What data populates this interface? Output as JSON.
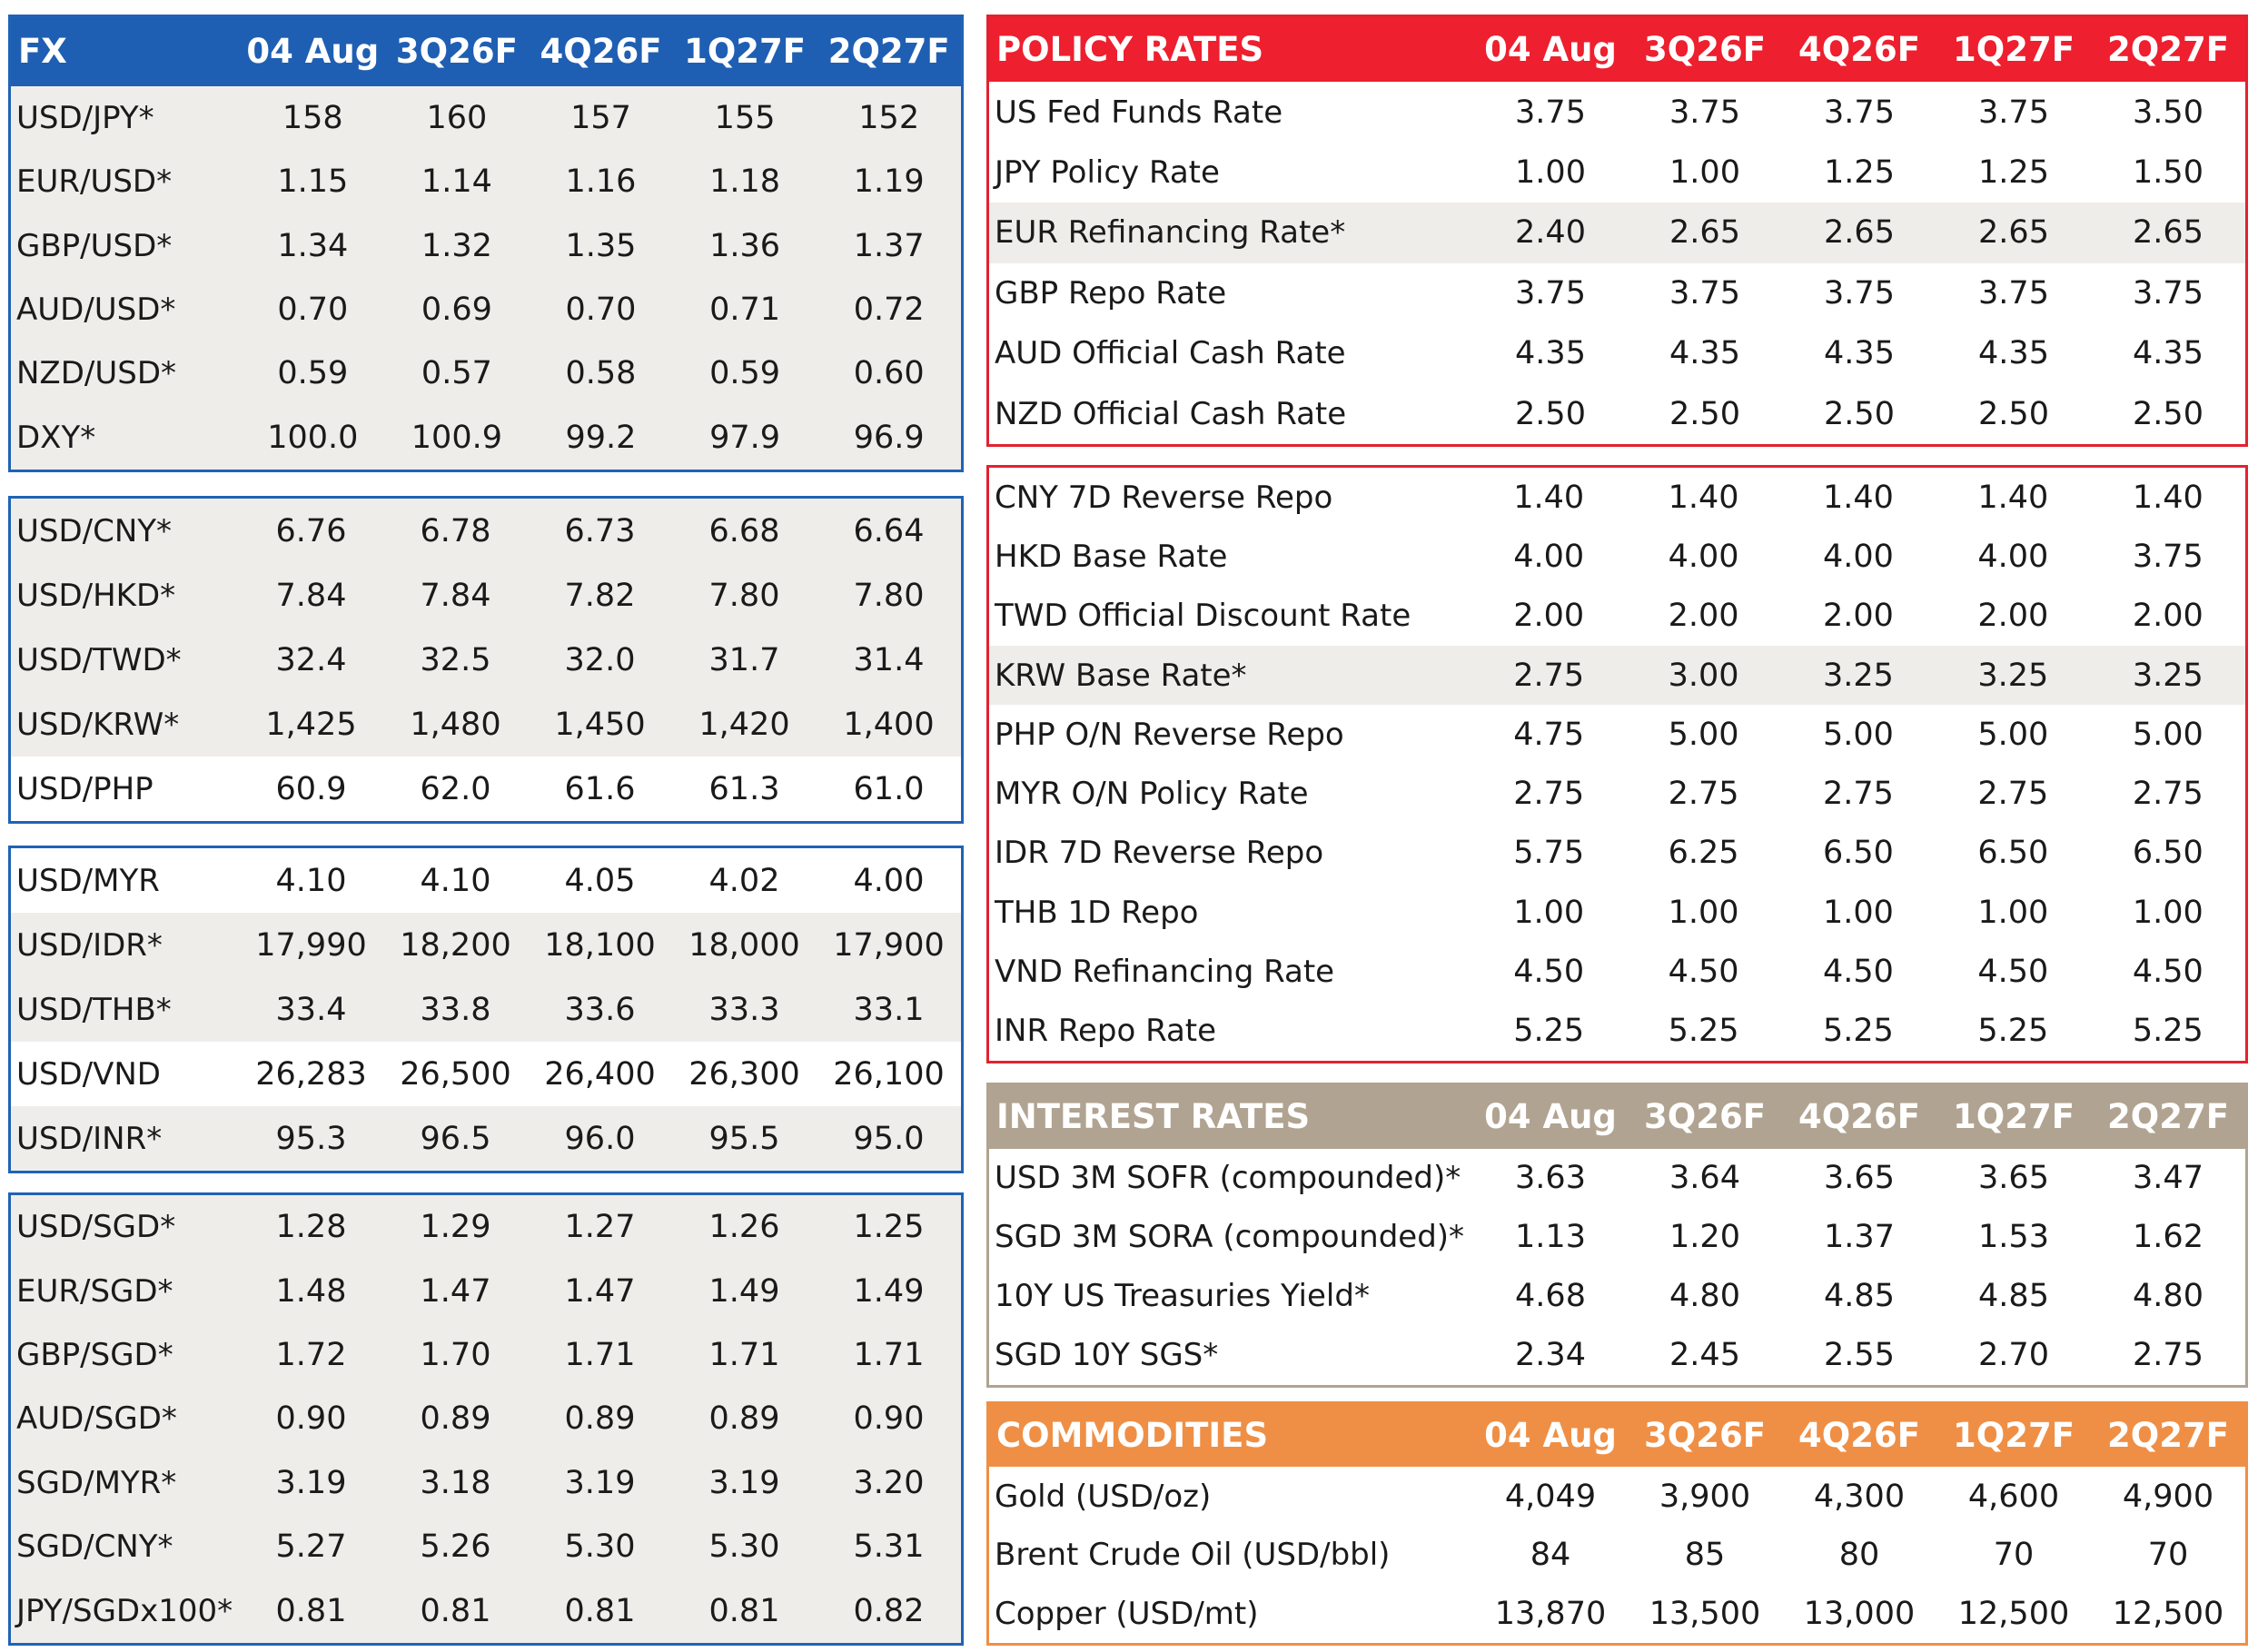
{
  "fx": {
    "title": "FX",
    "columns": [
      "04 Aug",
      "3Q26F",
      "4Q26F",
      "1Q27F",
      "2Q27F"
    ],
    "groups": [
      [
        {
          "label": "USD/JPY*",
          "values": [
            "158",
            "160",
            "157",
            "155",
            "152"
          ]
        },
        {
          "label": "EUR/USD*",
          "values": [
            "1.15",
            "1.14",
            "1.16",
            "1.18",
            "1.19"
          ]
        },
        {
          "label": "GBP/USD*",
          "values": [
            "1.34",
            "1.32",
            "1.35",
            "1.36",
            "1.37"
          ]
        },
        {
          "label": "AUD/USD*",
          "values": [
            "0.70",
            "0.69",
            "0.70",
            "0.71",
            "0.72"
          ]
        },
        {
          "label": "NZD/USD*",
          "values": [
            "0.59",
            "0.57",
            "0.58",
            "0.59",
            "0.60"
          ]
        },
        {
          "label": "DXY*",
          "values": [
            "100.0",
            "100.9",
            "99.2",
            "97.9",
            "96.9"
          ]
        }
      ],
      [
        {
          "label": "USD/CNY*",
          "values": [
            "6.76",
            "6.78",
            "6.73",
            "6.68",
            "6.64"
          ]
        },
        {
          "label": "USD/HKD*",
          "values": [
            "7.84",
            "7.84",
            "7.82",
            "7.80",
            "7.80"
          ]
        },
        {
          "label": "USD/TWD*",
          "values": [
            "32.4",
            "32.5",
            "32.0",
            "31.7",
            "31.4"
          ]
        },
        {
          "label": "USD/KRW*",
          "values": [
            "1,425",
            "1,480",
            "1,450",
            "1,420",
            "1,400"
          ]
        },
        {
          "label": "USD/PHP",
          "values": [
            "60.9",
            "62.0",
            "61.6",
            "61.3",
            "61.0"
          ]
        }
      ],
      [
        {
          "label": "USD/MYR",
          "values": [
            "4.10",
            "4.10",
            "4.05",
            "4.02",
            "4.00"
          ]
        },
        {
          "label": "USD/IDR*",
          "values": [
            "17,990",
            "18,200",
            "18,100",
            "18,000",
            "17,900"
          ]
        },
        {
          "label": "USD/THB*",
          "values": [
            "33.4",
            "33.8",
            "33.6",
            "33.3",
            "33.1"
          ]
        },
        {
          "label": "USD/VND",
          "values": [
            "26,283",
            "26,500",
            "26,400",
            "26,300",
            "26,100"
          ]
        },
        {
          "label": "USD/INR*",
          "values": [
            "95.3",
            "96.5",
            "96.0",
            "95.5",
            "95.0"
          ]
        }
      ],
      [
        {
          "label": "USD/SGD*",
          "values": [
            "1.28",
            "1.29",
            "1.27",
            "1.26",
            "1.25"
          ]
        },
        {
          "label": "EUR/SGD*",
          "values": [
            "1.48",
            "1.47",
            "1.47",
            "1.49",
            "1.49"
          ]
        },
        {
          "label": "GBP/SGD*",
          "values": [
            "1.72",
            "1.70",
            "1.71",
            "1.71",
            "1.71"
          ]
        },
        {
          "label": "AUD/SGD*",
          "values": [
            "0.90",
            "0.89",
            "0.89",
            "0.89",
            "0.90"
          ]
        },
        {
          "label": "SGD/MYR*",
          "values": [
            "3.19",
            "3.18",
            "3.19",
            "3.19",
            "3.20"
          ]
        },
        {
          "label": "SGD/CNY*",
          "values": [
            "5.27",
            "5.26",
            "5.30",
            "5.30",
            "5.31"
          ]
        },
        {
          "label": "JPY/SGDx100*",
          "values": [
            "0.81",
            "0.81",
            "0.81",
            "0.81",
            "0.82"
          ]
        }
      ]
    ]
  },
  "policy_rates": {
    "title": "POLICY RATES",
    "columns": [
      "04 Aug",
      "3Q26F",
      "4Q26F",
      "1Q27F",
      "2Q27F"
    ],
    "groups": [
      [
        {
          "label": "US Fed Funds Rate",
          "values": [
            "3.75",
            "3.75",
            "3.75",
            "3.75",
            "3.50"
          ]
        },
        {
          "label": "JPY Policy Rate",
          "values": [
            "1.00",
            "1.00",
            "1.25",
            "1.25",
            "1.50"
          ]
        },
        {
          "label": "EUR Refinancing Rate*",
          "values": [
            "2.40",
            "2.65",
            "2.65",
            "2.65",
            "2.65"
          ]
        },
        {
          "label": "GBP Repo Rate",
          "values": [
            "3.75",
            "3.75",
            "3.75",
            "3.75",
            "3.75"
          ]
        },
        {
          "label": "AUD Official Cash Rate",
          "values": [
            "4.35",
            "4.35",
            "4.35",
            "4.35",
            "4.35"
          ]
        },
        {
          "label": "NZD Official Cash Rate",
          "values": [
            "2.50",
            "2.50",
            "2.50",
            "2.50",
            "2.50"
          ]
        }
      ],
      [
        {
          "label": "CNY 7D Reverse Repo",
          "values": [
            "1.40",
            "1.40",
            "1.40",
            "1.40",
            "1.40"
          ]
        },
        {
          "label": "HKD Base Rate",
          "values": [
            "4.00",
            "4.00",
            "4.00",
            "4.00",
            "3.75"
          ]
        },
        {
          "label": "TWD Official Discount Rate",
          "values": [
            "2.00",
            "2.00",
            "2.00",
            "2.00",
            "2.00"
          ]
        },
        {
          "label": "KRW Base Rate*",
          "values": [
            "2.75",
            "3.00",
            "3.25",
            "3.25",
            "3.25"
          ]
        },
        {
          "label": "PHP O/N Reverse Repo",
          "values": [
            "4.75",
            "5.00",
            "5.00",
            "5.00",
            "5.00"
          ]
        },
        {
          "label": "MYR O/N Policy Rate",
          "values": [
            "2.75",
            "2.75",
            "2.75",
            "2.75",
            "2.75"
          ]
        },
        {
          "label": "IDR 7D Reverse Repo",
          "values": [
            "5.75",
            "6.25",
            "6.50",
            "6.50",
            "6.50"
          ]
        },
        {
          "label": "THB 1D Repo",
          "values": [
            "1.00",
            "1.00",
            "1.00",
            "1.00",
            "1.00"
          ]
        },
        {
          "label": "VND Refinancing Rate",
          "values": [
            "4.50",
            "4.50",
            "4.50",
            "4.50",
            "4.50"
          ]
        },
        {
          "label": "INR Repo Rate",
          "values": [
            "5.25",
            "5.25",
            "5.25",
            "5.25",
            "5.25"
          ]
        }
      ]
    ]
  },
  "interest_rates": {
    "title": "INTEREST RATES",
    "columns": [
      "04 Aug",
      "3Q26F",
      "4Q26F",
      "1Q27F",
      "2Q27F"
    ],
    "rows": [
      {
        "label": "USD 3M SOFR (compounded)*",
        "values": [
          "3.63",
          "3.64",
          "3.65",
          "3.65",
          "3.47"
        ]
      },
      {
        "label": "SGD 3M SORA (compounded)*",
        "values": [
          "1.13",
          "1.20",
          "1.37",
          "1.53",
          "1.62"
        ]
      },
      {
        "label": "10Y US Treasuries Yield*",
        "values": [
          "4.68",
          "4.80",
          "4.85",
          "4.85",
          "4.80"
        ]
      },
      {
        "label": "SGD 10Y SGS*",
        "values": [
          "2.34",
          "2.45",
          "2.55",
          "2.70",
          "2.75"
        ]
      }
    ]
  },
  "commodities": {
    "title": "COMMODITIES",
    "columns": [
      "04 Aug",
      "3Q26F",
      "4Q26F",
      "1Q27F",
      "2Q27F"
    ],
    "rows": [
      {
        "label": "Gold (USD/oz)",
        "values": [
          "4,049",
          "3,900",
          "4,300",
          "4,600",
          "4,900"
        ]
      },
      {
        "label": "Brent Crude Oil (USD/bbl)",
        "values": [
          "84",
          "85",
          "80",
          "70",
          "70"
        ]
      },
      {
        "label": "Copper (USD/mt)",
        "values": [
          "13,870",
          "13,500",
          "13,000",
          "12,500",
          "12,500"
        ]
      }
    ]
  },
  "colors": {
    "fx_blue": "#1f5fb3",
    "policy_red": "#ee1f2e",
    "interest_tan": "#b0a391",
    "commodities_orange": "#ef8f45",
    "row_shade": "#efedea"
  }
}
